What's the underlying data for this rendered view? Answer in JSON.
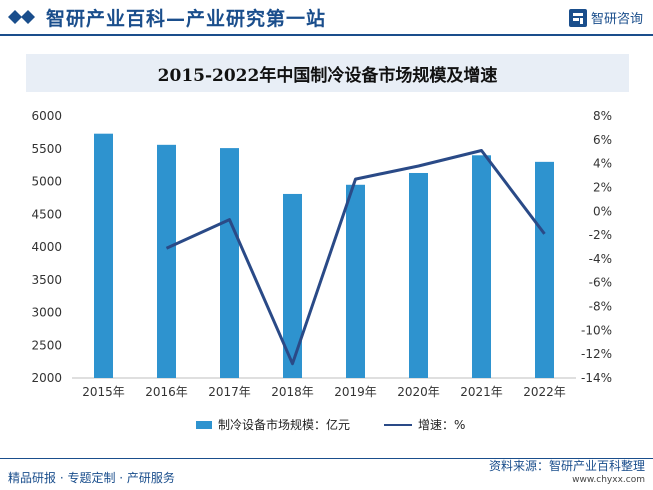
{
  "header": {
    "title": "智研产业百科—产业研究第一站",
    "brand": "智研咨询"
  },
  "chart_data": {
    "type": "bar",
    "title": "2015-2022年中国制冷设备市场规模及增速",
    "categories": [
      "2015年",
      "2016年",
      "2017年",
      "2018年",
      "2019年",
      "2020年",
      "2021年",
      "2022年"
    ],
    "series": [
      {
        "name": "制冷设备市场规模：亿元",
        "type": "bar",
        "axis": "left",
        "color": "#2e93cf",
        "values": [
          5730,
          5560,
          5510,
          4810,
          4950,
          5130,
          5400,
          5300
        ]
      },
      {
        "name": "增速：%",
        "type": "line",
        "axis": "right",
        "color": "#2a4a87",
        "values": [
          null,
          -3.1,
          -0.7,
          -12.8,
          2.7,
          3.8,
          5.1,
          -1.9
        ]
      }
    ],
    "y_left": {
      "min": 2000,
      "max": 6000,
      "ticks": [
        "6000",
        "5500",
        "5000",
        "4500",
        "4000",
        "3500",
        "3000",
        "2500",
        "2000"
      ]
    },
    "y_right": {
      "min": -14,
      "max": 8,
      "ticks": [
        "8%",
        "6%",
        "4%",
        "2%",
        "0%",
        "-2%",
        "-4%",
        "-6%",
        "-8%",
        "-10%",
        "-12%",
        "-14%"
      ]
    },
    "grid": false,
    "legend": "bottom"
  },
  "footer": {
    "left": "精品研报 · 专题定制 · 产研服务",
    "source": "资料来源：智研产业百科整理",
    "url": "www.chyxx.com"
  }
}
